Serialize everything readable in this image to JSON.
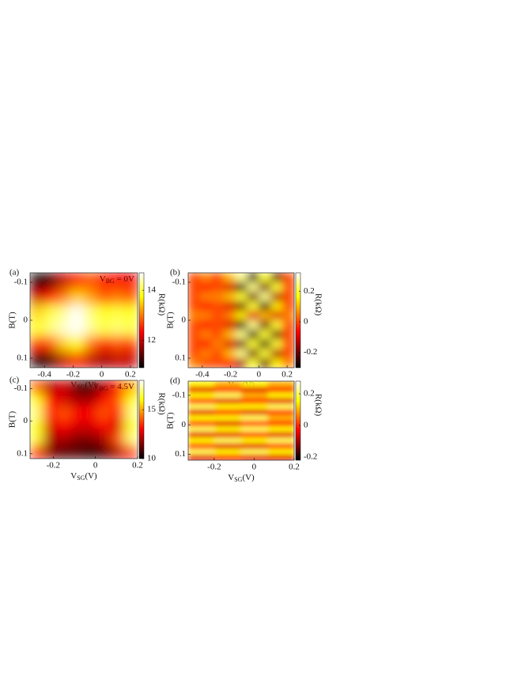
{
  "chart_data": [
    {
      "type": "heatmap",
      "panel": "(a)",
      "annotation": [
        "V",
        "BG",
        " = 0V"
      ],
      "xlabel": [
        "V",
        "SG",
        "(V)"
      ],
      "ylabel": "B(T)",
      "colorbar_label": "R(kΩ)",
      "xlim": [
        -0.5,
        0.25
      ],
      "xticks": [
        -0.4,
        -0.2,
        0,
        0.2
      ],
      "ylim": [
        -0.125,
        0.125
      ],
      "yticks": [
        -0.1,
        0,
        0.1
      ],
      "clim": [
        10.9,
        14.7
      ],
      "cticks": [
        12,
        14
      ],
      "colormap": "hot",
      "values": [
        [
          10.9,
          11.2,
          12,
          12.5,
          12.8,
          12.5,
          12.3,
          12.3
        ],
        [
          12,
          12.5,
          13,
          13.5,
          13.2,
          12.8,
          13,
          12.8
        ],
        [
          13.5,
          14,
          14.3,
          14.7,
          14.2,
          13.8,
          14,
          13.8
        ],
        [
          13.8,
          14.2,
          14.5,
          14.7,
          14.3,
          14,
          14.2,
          14
        ],
        [
          12.5,
          12.8,
          13.5,
          13.8,
          13,
          12.5,
          12.8,
          12.6
        ],
        [
          11,
          11.3,
          12,
          12.5,
          12,
          11.8,
          12,
          12
        ]
      ]
    },
    {
      "type": "heatmap",
      "panel": "(b)",
      "xlabel": [
        "V",
        "SG",
        "(V)"
      ],
      "ylabel": "B(T)",
      "colorbar_label": "R(kΩ)",
      "xlim": [
        -0.5,
        0.25
      ],
      "xticks": [
        -0.4,
        -0.2,
        0,
        0.2
      ],
      "ylim": [
        -0.125,
        0.125
      ],
      "yticks": [
        -0.1,
        0,
        0.1
      ],
      "clim": [
        -0.3,
        0.32
      ],
      "cticks": [
        -0.2,
        0,
        0.2
      ],
      "colormap": "hot",
      "values": [
        [
          0,
          0.05,
          0,
          0.1,
          0.25,
          -0.25,
          0.2,
          -0.2,
          0
        ],
        [
          0,
          -0.05,
          0,
          -0.1,
          -0.25,
          0.25,
          -0.2,
          0.2,
          0
        ],
        [
          0,
          0.05,
          0.05,
          0.1,
          0.2,
          -0.2,
          0.25,
          -0.15,
          0
        ],
        [
          0,
          -0.05,
          0,
          -0.1,
          -0.2,
          0.2,
          -0.25,
          0.15,
          0
        ],
        [
          0.05,
          0.05,
          0,
          0.05,
          0.15,
          -0.1,
          0.1,
          -0.1,
          0.05
        ],
        [
          0,
          -0.05,
          0,
          -0.1,
          -0.25,
          0.25,
          -0.2,
          0.2,
          0
        ],
        [
          0,
          0.05,
          0,
          0.1,
          0.25,
          -0.25,
          0.2,
          -0.2,
          0
        ],
        [
          0,
          -0.05,
          0.05,
          -0.1,
          -0.2,
          0.2,
          -0.25,
          0.2,
          0
        ],
        [
          0,
          0.05,
          0,
          0.1,
          0.25,
          -0.2,
          0.2,
          -0.15,
          0
        ],
        [
          0.05,
          0,
          0,
          -0.05,
          -0.15,
          0.2,
          -0.2,
          0.15,
          0.05
        ]
      ]
    },
    {
      "type": "heatmap",
      "panel": "(c)",
      "annotation": [
        "V",
        "BG",
        " = 4.5V"
      ],
      "xlabel": [
        "V",
        "SG",
        "(V)"
      ],
      "ylabel": "B(T)",
      "colorbar_label": "R(kΩ)",
      "xlim": [
        -0.31,
        0.2
      ],
      "xticks": [
        -0.2,
        0,
        0.2
      ],
      "ylim": [
        -0.125,
        0.115
      ],
      "yticks": [
        -0.1,
        0,
        0.1
      ],
      "clim": [
        10,
        18
      ],
      "cticks": [
        10,
        15
      ],
      "colormap": "hot",
      "values": [
        [
          14,
          12,
          12.5,
          11,
          10.5,
          12,
          13,
          15
        ],
        [
          16,
          13,
          12.5,
          12,
          12,
          13,
          14,
          16
        ],
        [
          17,
          13,
          14,
          13,
          13,
          14,
          13,
          17
        ],
        [
          16,
          12.5,
          13,
          12.5,
          12.5,
          13,
          12.5,
          16
        ],
        [
          16.5,
          12,
          12,
          11.5,
          11.5,
          12,
          14,
          17
        ],
        [
          13,
          11.5,
          11,
          11,
          10.5,
          11,
          12,
          13
        ]
      ]
    },
    {
      "type": "heatmap",
      "panel": "(d)",
      "xlabel": [
        "V",
        "SG",
        "(V)"
      ],
      "ylabel": "B(T)",
      "colorbar_label": "R(kΩ)",
      "xlim": [
        -0.33,
        0.2
      ],
      "xticks": [
        -0.2,
        0,
        0.2
      ],
      "ylim": [
        -0.148,
        0.12
      ],
      "yticks": [
        -0.1,
        0,
        0.1
      ],
      "clim": [
        -0.22,
        0.28
      ],
      "cticks": [
        -0.2,
        0,
        0.2
      ],
      "colormap": "hot",
      "values": [
        [
          0.15,
          0.1,
          0.15,
          0.1
        ],
        [
          -0.05,
          0,
          -0.05,
          0
        ],
        [
          0.15,
          0.2,
          0.1,
          0.15
        ],
        [
          0,
          -0.05,
          0,
          -0.05
        ],
        [
          0.2,
          0.15,
          0.15,
          0.2
        ],
        [
          -0.05,
          0,
          -0.05,
          0
        ],
        [
          0.15,
          0.15,
          0.2,
          0.1
        ],
        [
          0,
          -0.05,
          0,
          0
        ],
        [
          0.2,
          0.15,
          0.2,
          0.15
        ],
        [
          -0.05,
          -0.05,
          0,
          -0.05
        ],
        [
          0.15,
          0.2,
          0.15,
          0.2
        ],
        [
          0,
          -0.05,
          -0.05,
          0
        ],
        [
          0.2,
          0.15,
          0.2,
          0.15
        ],
        [
          -0.05,
          0,
          -0.05,
          -0.05
        ]
      ]
    }
  ]
}
